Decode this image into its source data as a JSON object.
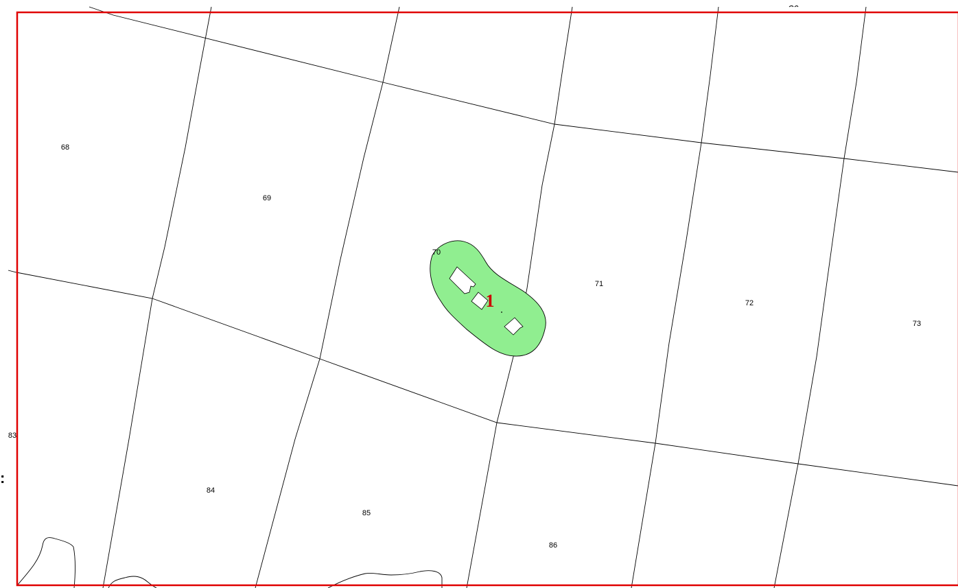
{
  "map": {
    "parcels": [
      {
        "id": "68",
        "label": "68"
      },
      {
        "id": "69",
        "label": "69"
      },
      {
        "id": "70",
        "label": "70"
      },
      {
        "id": "71",
        "label": "71"
      },
      {
        "id": "72",
        "label": "72"
      },
      {
        "id": "73",
        "label": "73"
      },
      {
        "id": "83",
        "label": "83"
      },
      {
        "id": "84",
        "label": "84"
      },
      {
        "id": "85",
        "label": "85"
      },
      {
        "id": "86",
        "label": "86"
      }
    ],
    "site": {
      "number": "1"
    },
    "edge_mark": ":",
    "colors": {
      "frame": "#e00000",
      "site_fill": "#90ee90",
      "site_number": "#cc0000",
      "lines": "#000000"
    }
  }
}
